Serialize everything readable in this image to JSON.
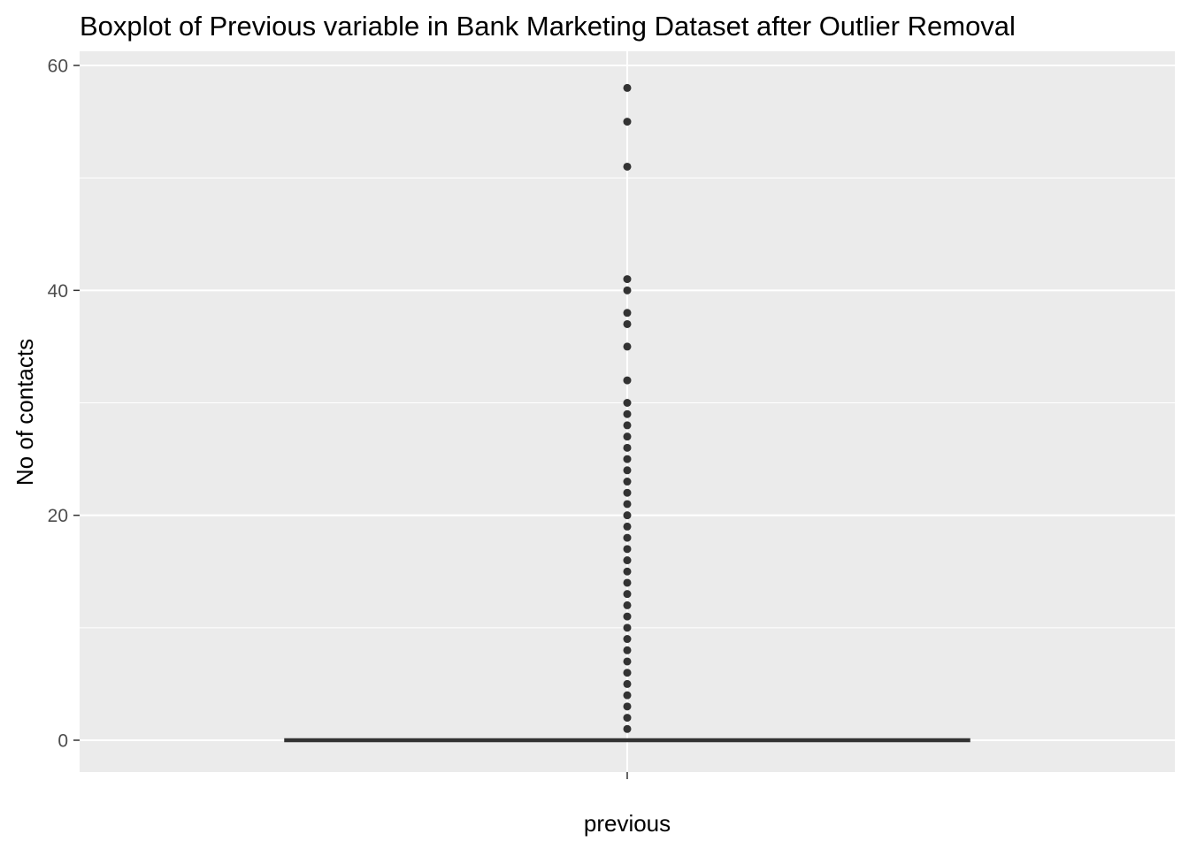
{
  "chart_data": {
    "type": "boxplot",
    "title": "Boxplot of Previous variable in Bank Marketing Dataset after Outlier Removal",
    "xlabel": "previous",
    "ylabel": "No of contacts",
    "categories": [
      ""
    ],
    "ylim": [
      -2.8,
      60
    ],
    "y_ticks": [
      0,
      20,
      40,
      60
    ],
    "grid": true,
    "box": {
      "min": 0,
      "q1": 0,
      "median": 0,
      "q3": 0,
      "max": 0
    },
    "outliers": [
      1,
      2,
      3,
      4,
      5,
      6,
      7,
      8,
      9,
      10,
      11,
      12,
      13,
      14,
      15,
      16,
      17,
      18,
      19,
      20,
      21,
      22,
      23,
      24,
      25,
      26,
      27,
      28,
      29,
      30,
      32,
      35,
      37,
      38,
      40,
      41,
      51,
      55,
      58
    ],
    "colors": {
      "panel": "#ebebeb",
      "grid": "#ffffff",
      "box": "#333333",
      "points": "#333333"
    }
  }
}
